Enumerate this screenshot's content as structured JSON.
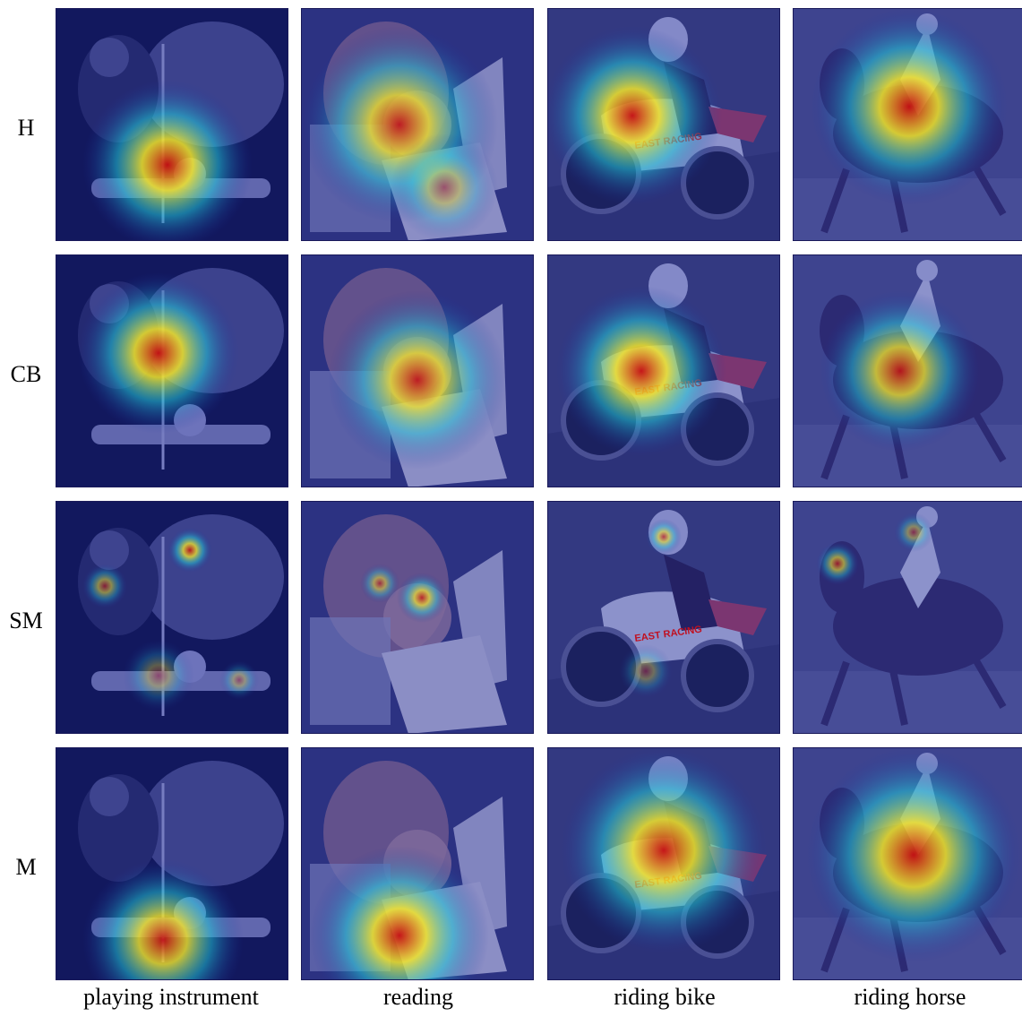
{
  "figure": {
    "row_labels": [
      "H",
      "CB",
      "SM",
      "M"
    ],
    "column_labels": [
      "playing instrument",
      "reading",
      "riding bike",
      "riding horse"
    ],
    "colors": {
      "heat_low": "#1d2b9a",
      "heat_mid": "#20c8d8",
      "heat_high": "#f2e62a",
      "heat_peak": "#c81010"
    },
    "bike_text": "EAST RACING"
  }
}
